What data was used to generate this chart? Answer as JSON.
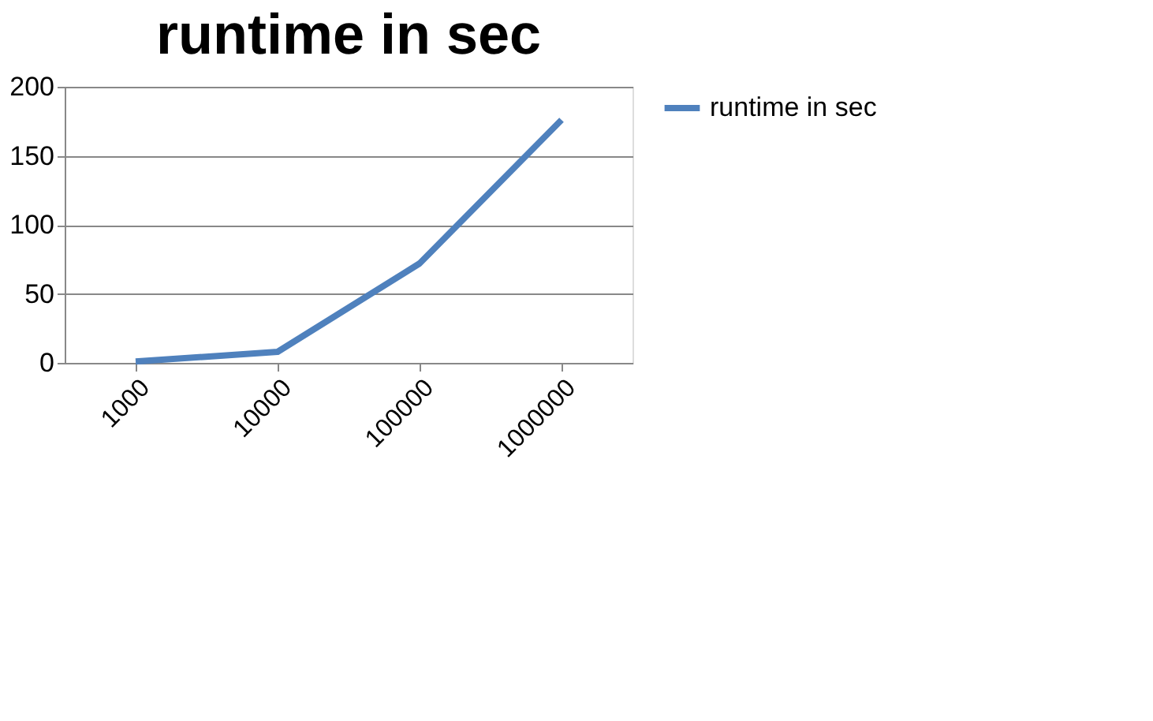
{
  "chart_data": {
    "type": "line",
    "title": "runtime in sec",
    "categories": [
      "1000",
      "10000",
      "100000",
      "1000000"
    ],
    "series": [
      {
        "name": "runtime in sec",
        "color": "#4f81bd",
        "values": [
          1,
          8,
          72,
          176
        ]
      }
    ],
    "ylim": [
      0,
      200
    ],
    "yticks": [
      0,
      50,
      100,
      150,
      200
    ],
    "grid": "y",
    "legend": "right",
    "marker": "none",
    "line_style": "solid"
  }
}
